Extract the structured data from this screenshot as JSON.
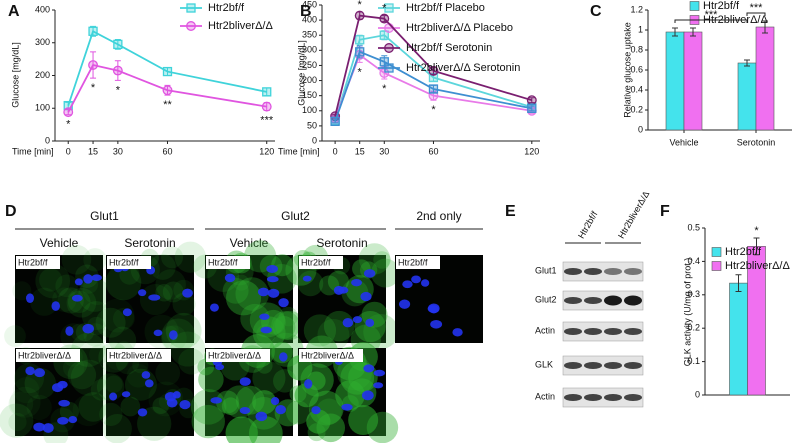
{
  "panel_labels": [
    "A",
    "B",
    "C",
    "D",
    "E",
    "F"
  ],
  "chart_data": [
    {
      "type": "line",
      "ylabel": "Glucose [mg/dL]",
      "xlabel": "Time [min]",
      "x": [
        0,
        15,
        30,
        60,
        120
      ],
      "xlim": [
        -8,
        125
      ],
      "xticks": [
        0,
        15,
        30,
        60,
        120
      ],
      "ylim": [
        0,
        400
      ],
      "yticks": [
        0,
        100,
        200,
        300,
        400
      ],
      "legend": "upper right",
      "series": [
        {
          "name": "Htr2bf/f",
          "color": "#3fd3da",
          "marker": "square",
          "values": [
            108,
            335,
            295,
            212,
            150
          ],
          "errors": [
            10,
            15,
            15,
            12,
            12
          ]
        },
        {
          "name": "Htr2bliverΔ/Δ",
          "color": "#e055e0",
          "marker": "circle",
          "values": [
            88,
            232,
            215,
            155,
            105
          ],
          "errors": [
            8,
            40,
            30,
            15,
            12
          ]
        }
      ],
      "annotations": [
        {
          "x": 0,
          "text": "*",
          "position": "below"
        },
        {
          "x": 15,
          "text": "*",
          "position": "below"
        },
        {
          "x": 30,
          "text": "*",
          "position": "below"
        },
        {
          "x": 60,
          "text": "**",
          "position": "below"
        },
        {
          "x": 120,
          "text": "***",
          "position": "below"
        }
      ]
    },
    {
      "type": "line",
      "ylabel": "Glucose [mg/dL]",
      "xlabel": "Time [min]",
      "x": [
        0,
        15,
        30,
        60,
        120
      ],
      "xlim": [
        -8,
        125
      ],
      "xticks": [
        0,
        15,
        30,
        60,
        120
      ],
      "ylim": [
        0,
        450
      ],
      "yticks": [
        0,
        50,
        100,
        150,
        200,
        250,
        300,
        350,
        400,
        450
      ],
      "legend": "upper right",
      "series": [
        {
          "name": "Htr2bf/f Placebo",
          "color": "#5cd6dc",
          "marker": "square",
          "values": [
            68,
            335,
            350,
            210,
            112
          ],
          "errors": [
            6,
            15,
            15,
            12,
            8
          ]
        },
        {
          "name": "Htr2bliverΔ/Δ Placebo",
          "color": "#e87ae8",
          "marker": "circle",
          "values": [
            75,
            285,
            225,
            150,
            100
          ],
          "errors": [
            6,
            25,
            20,
            15,
            8
          ]
        },
        {
          "name": "Htr2bf/f Serotonin",
          "color": "#7a1f70",
          "marker": "circle",
          "values": [
            82,
            415,
            405,
            232,
            135
          ],
          "errors": [
            5,
            12,
            10,
            12,
            8
          ]
        },
        {
          "name": "Htr2bliverΔ/Δ Serotonin",
          "color": "#3e8fd1",
          "marker": "square",
          "values": [
            65,
            295,
            262,
            172,
            108
          ],
          "errors": [
            5,
            20,
            20,
            12,
            8
          ]
        }
      ],
      "annotations": [
        {
          "x": 15,
          "text": "*",
          "position": "above"
        },
        {
          "x": 30,
          "text": "*",
          "position": "above"
        },
        {
          "x": 15,
          "text": "*",
          "position": "below"
        },
        {
          "x": 30,
          "text": "*",
          "position": "below"
        },
        {
          "x": 60,
          "text": "*",
          "position": "below"
        }
      ]
    },
    {
      "type": "bar",
      "ylabel": "Relative glucose uptake",
      "categories": [
        "Vehicle",
        "Serotonin"
      ],
      "ylim": [
        0,
        1.2
      ],
      "yticks": [
        0,
        0.2,
        0.4,
        0.6,
        0.8,
        1,
        1.2
      ],
      "legend": "upper right",
      "series": [
        {
          "name": "Htr2bf/f",
          "color": "#44e3ec",
          "values": [
            0.98,
            0.67
          ],
          "errors": [
            0.04,
            0.03
          ]
        },
        {
          "name": "Htr2bliverΔ/Δ",
          "color": "#f070f0",
          "values": [
            0.98,
            1.03
          ],
          "errors": [
            0.04,
            0.06
          ]
        }
      ],
      "annotations": [
        {
          "text": "***"
        },
        {
          "text": "***"
        }
      ]
    },
    {
      "type": "bar",
      "ylabel": "GLK activity (U/mg of prot.)",
      "categories": [
        null
      ],
      "ylim": [
        0,
        0.5
      ],
      "yticks": [
        0,
        0.1,
        0.2,
        0.3,
        0.4,
        0.5
      ],
      "legend": "upper left",
      "series": [
        {
          "name": "Htr2bf/f",
          "color": "#44e3ec",
          "values": [
            0.335
          ],
          "errors": [
            0.025
          ]
        },
        {
          "name": "Htr2bliverΔ/Δ",
          "color": "#f070f0",
          "values": [
            0.445
          ],
          "errors": [
            0.025
          ]
        }
      ],
      "annotations": [
        {
          "text": "*"
        }
      ]
    }
  ],
  "micrographs": {
    "groups": [
      "Glut1",
      "Glut2",
      "2nd only"
    ],
    "treatments": [
      "Vehicle",
      "Serotonin",
      "Vehicle",
      "Serotonin"
    ],
    "genotypes": [
      "Htr2bf/f",
      "Htr2bliverΔ/Δ"
    ]
  },
  "western_blot": {
    "genotypes": [
      "Htr2bf/f",
      "Htr2bliverΔ/Δ"
    ],
    "bands": [
      "Glut1",
      "Glut2",
      "Actin",
      "GLK",
      "Actin"
    ]
  }
}
